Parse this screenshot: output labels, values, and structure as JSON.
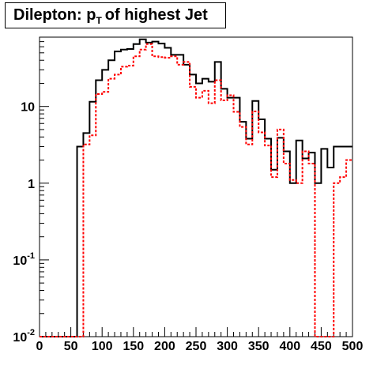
{
  "chart_data": {
    "type": "histogram",
    "title": {
      "prefix": "Dilepton: p",
      "subscript": "T",
      "suffix": "of highest Jet"
    },
    "xlabel": "",
    "ylabel": "",
    "xlim": [
      0,
      500
    ],
    "ylim": [
      0.01,
      80
    ],
    "yscale": "log",
    "grid": false,
    "legend": "none",
    "bin_width": 10,
    "x_ticks": [
      "0",
      "50",
      "100",
      "150",
      "200",
      "250",
      "300",
      "350",
      "400",
      "450",
      "500"
    ],
    "y_ticks": [
      {
        "value": 0.01,
        "base": "10",
        "exp": "-2"
      },
      {
        "value": 0.1,
        "base": "10",
        "exp": "-1"
      },
      {
        "value": 1,
        "base": "1",
        "exp": ""
      },
      {
        "value": 10,
        "base": "10",
        "exp": ""
      }
    ],
    "series": [
      {
        "style": "solid",
        "color": "#000000",
        "values": [
          0.01,
          0.01,
          0.01,
          0.01,
          0.01,
          0.01,
          3,
          4.5,
          11.5,
          22,
          30,
          40,
          52,
          55,
          56,
          65,
          75,
          68,
          70,
          66,
          58,
          47,
          47,
          35,
          26,
          20,
          23,
          21,
          38,
          17,
          13,
          13,
          6.3,
          3.8,
          11.8,
          6.8,
          3.8,
          1.5,
          3.9,
          2.6,
          1,
          3.6,
          2.1,
          2.5,
          1,
          2.8,
          1.6,
          3,
          3,
          3
        ]
      },
      {
        "style": "dotted",
        "color": "#ff0000",
        "values": [
          0.01,
          0.01,
          0.01,
          0.01,
          0.01,
          0.01,
          0.01,
          3.2,
          4.2,
          14.5,
          15.5,
          23,
          26,
          33,
          34,
          45,
          55,
          65,
          45,
          44,
          43,
          45,
          35,
          38,
          18,
          13,
          16,
          11,
          22,
          12,
          14,
          8.5,
          5.4,
          3.2,
          8.6,
          4.6,
          3.1,
          1.2,
          5,
          1.8,
          1.1,
          1,
          2.6,
          1.8,
          0.01,
          0.01,
          0.01,
          1,
          1.2,
          2
        ]
      }
    ]
  }
}
